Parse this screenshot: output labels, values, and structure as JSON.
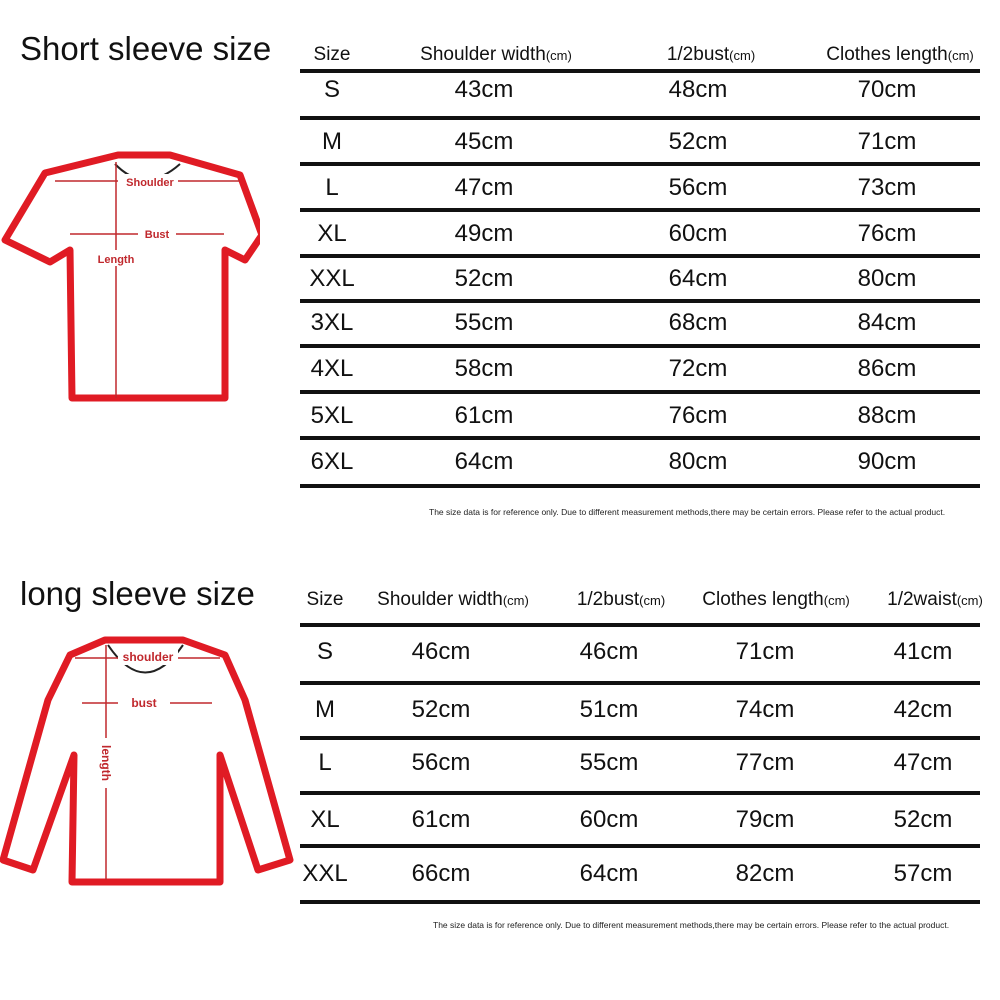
{
  "short_sleeve": {
    "title": "Short sleeve size",
    "diagram_labels": {
      "shoulder": "Shoulder",
      "bust": "Bust",
      "length": "Length"
    },
    "headers": [
      {
        "main": "Size",
        "unit": ""
      },
      {
        "main": "Shoulder width",
        "unit": "(cm)"
      },
      {
        "main": "1/2bust",
        "unit": "(cm)"
      },
      {
        "main": "Clothes length",
        "unit": "(cm)"
      }
    ],
    "rows": [
      [
        "S",
        "43cm",
        "48cm",
        "70cm"
      ],
      [
        "M",
        "45cm",
        "52cm",
        "71cm"
      ],
      [
        "L",
        "47cm",
        "56cm",
        "73cm"
      ],
      [
        "XL",
        "49cm",
        "60cm",
        "76cm"
      ],
      [
        "XXL",
        "52cm",
        "64cm",
        "80cm"
      ],
      [
        "3XL",
        "55cm",
        "68cm",
        "84cm"
      ],
      [
        "4XL",
        "58cm",
        "72cm",
        "86cm"
      ],
      [
        "5XL",
        "61cm",
        "76cm",
        "88cm"
      ],
      [
        "6XL",
        "64cm",
        "80cm",
        "90cm"
      ]
    ],
    "note": "The size data is for reference only. Due to different measurement methods,there may be certain errors. Please refer to the actual product."
  },
  "long_sleeve": {
    "title": "long sleeve size",
    "diagram_labels": {
      "shoulder": "shoulder",
      "bust": "bust",
      "length": "length"
    },
    "headers": [
      {
        "main": "Size",
        "unit": ""
      },
      {
        "main": "Shoulder width",
        "unit": "(cm)"
      },
      {
        "main": "1/2bust",
        "unit": "(cm)"
      },
      {
        "main": "Clothes length",
        "unit": "(cm)"
      },
      {
        "main": "1/2waist",
        "unit": "(cm)"
      }
    ],
    "rows": [
      [
        "S",
        "46cm",
        "46cm",
        "71cm",
        "41cm"
      ],
      [
        "M",
        "52cm",
        "51cm",
        "74cm",
        "42cm"
      ],
      [
        "L",
        "56cm",
        "55cm",
        "77cm",
        "47cm"
      ],
      [
        "XL",
        "61cm",
        "60cm",
        "79cm",
        "52cm"
      ],
      [
        "XXL",
        "66cm",
        "64cm",
        "82cm",
        "57cm"
      ]
    ],
    "note": "The size data is for reference only. Due to different measurement methods,there may be certain errors. Please refer to the actual product."
  },
  "colors": {
    "outline": "#e01b24",
    "measure": "#c0282d",
    "rule": "#111111"
  }
}
